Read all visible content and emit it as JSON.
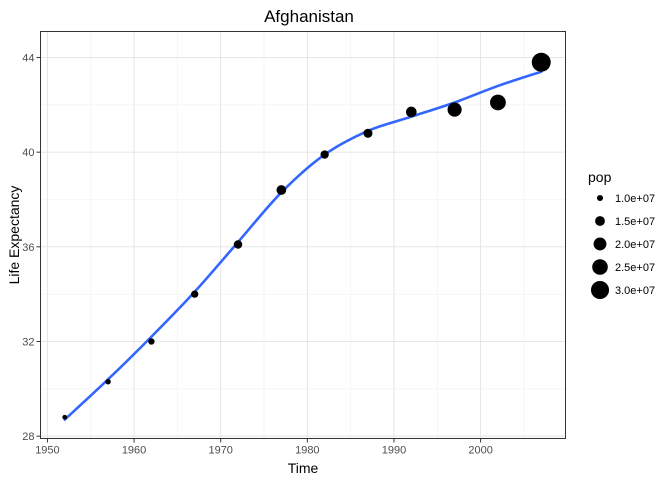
{
  "chart_data": {
    "type": "scatter",
    "title": "Afghanistan",
    "xlabel": "Time",
    "ylabel": "Life Expectancy",
    "xlim": [
      1949.2,
      2009.8
    ],
    "ylim": [
      27.9,
      45.1
    ],
    "x_ticks": [
      1950,
      1960,
      1970,
      1980,
      1990,
      2000
    ],
    "x_tick_labels": [
      "1950",
      "1960",
      "1970",
      "1980",
      "1990",
      "2000"
    ],
    "y_ticks": [
      28,
      32,
      36,
      40,
      44
    ],
    "y_tick_labels": [
      "28",
      "32",
      "36",
      "40",
      "44"
    ],
    "grid": true,
    "legend_position": "right",
    "point_color": "#000000",
    "line_color": "#3366FF",
    "size_legend": {
      "title": "pop",
      "entries": [
        {
          "label": "1.0e+07",
          "value": 10000000
        },
        {
          "label": "1.5e+07",
          "value": 15000000
        },
        {
          "label": "2.0e+07",
          "value": 20000000
        },
        {
          "label": "2.5e+07",
          "value": 25000000
        },
        {
          "label": "3.0e+07",
          "value": 30000000
        }
      ]
    },
    "points": [
      {
        "x": 1952,
        "y": 28.8,
        "pop": 8400000
      },
      {
        "x": 1957,
        "y": 30.3,
        "pop": 9200000
      },
      {
        "x": 1962,
        "y": 32.0,
        "pop": 10300000
      },
      {
        "x": 1967,
        "y": 34.0,
        "pop": 11500000
      },
      {
        "x": 1972,
        "y": 36.1,
        "pop": 13100000
      },
      {
        "x": 1977,
        "y": 38.4,
        "pop": 14900000
      },
      {
        "x": 1982,
        "y": 39.9,
        "pop": 12900000
      },
      {
        "x": 1987,
        "y": 40.8,
        "pop": 13900000
      },
      {
        "x": 1992,
        "y": 41.7,
        "pop": 16300000
      },
      {
        "x": 1997,
        "y": 41.8,
        "pop": 22200000
      },
      {
        "x": 2002,
        "y": 42.1,
        "pop": 25300000
      },
      {
        "x": 2007,
        "y": 43.8,
        "pop": 31900000
      }
    ],
    "smooth_line": [
      {
        "x": 1952,
        "y": 28.7
      },
      {
        "x": 1957,
        "y": 30.4
      },
      {
        "x": 1962,
        "y": 32.2
      },
      {
        "x": 1967,
        "y": 34.1
      },
      {
        "x": 1972,
        "y": 36.2
      },
      {
        "x": 1977,
        "y": 38.3
      },
      {
        "x": 1982,
        "y": 39.9
      },
      {
        "x": 1987,
        "y": 40.9
      },
      {
        "x": 1992,
        "y": 41.5
      },
      {
        "x": 1997,
        "y": 42.1
      },
      {
        "x": 2002,
        "y": 42.8
      },
      {
        "x": 2007,
        "y": 43.4
      }
    ]
  }
}
